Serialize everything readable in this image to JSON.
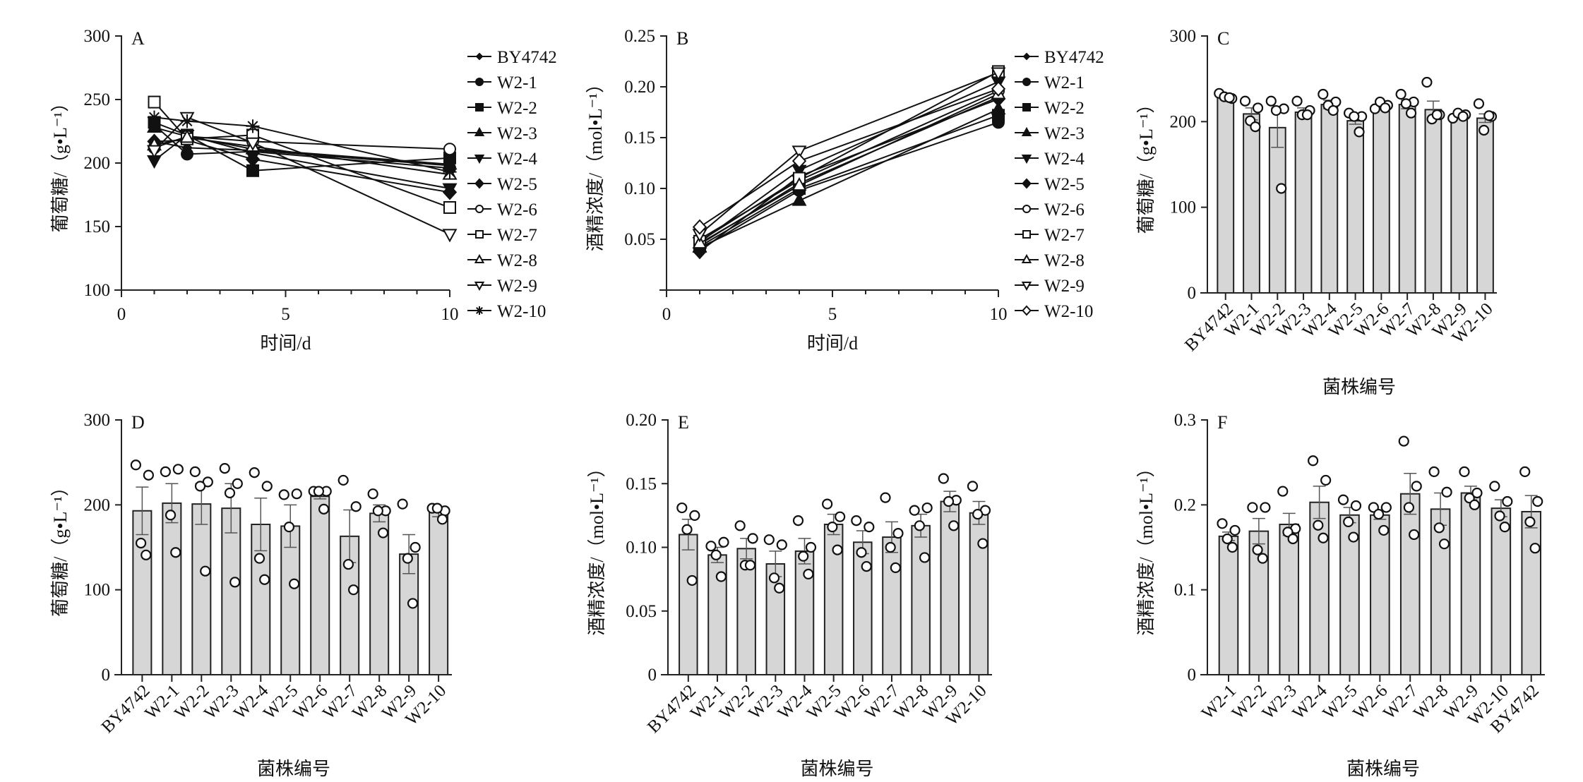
{
  "figure": {
    "panels": [
      "A",
      "B",
      "C",
      "D",
      "E",
      "F"
    ]
  },
  "chart_data": [
    {
      "panel": "A",
      "type": "line",
      "title": "",
      "xlabel": "时间/d",
      "ylabel": "葡萄糖/（g•L⁻¹）",
      "xlim": [
        0,
        10
      ],
      "ylim": [
        100,
        300
      ],
      "xticks": [
        0,
        5,
        10
      ],
      "yticks": [
        100,
        150,
        200,
        250,
        300
      ],
      "x_minor_ticks": [
        1,
        2,
        3,
        4,
        6,
        7,
        8,
        9
      ],
      "legend_position": "right",
      "x": [
        1,
        2,
        4,
        10
      ],
      "series": [
        {
          "name": "BY4742",
          "marker": "small-diamond-filled",
          "values": [
            217,
            212,
            210,
            198
          ]
        },
        {
          "name": "W2-1",
          "marker": "circle-filled",
          "values": [
            230,
            207,
            209,
            196
          ]
        },
        {
          "name": "W2-2",
          "marker": "square-filled",
          "values": [
            232,
            222,
            194,
            204
          ]
        },
        {
          "name": "W2-3",
          "marker": "triangle-up-filled",
          "values": [
            228,
            221,
            211,
            199
          ]
        },
        {
          "name": "W2-4",
          "marker": "triangle-down-filled",
          "values": [
            202,
            222,
            208,
            180
          ]
        },
        {
          "name": "W2-5",
          "marker": "diamond-filled",
          "values": [
            217,
            218,
            203,
            177
          ]
        },
        {
          "name": "W2-6",
          "marker": "circle-open",
          "values": [
            212,
            221,
            217,
            211
          ]
        },
        {
          "name": "W2-7",
          "marker": "square-open",
          "values": [
            248,
            219,
            222,
            165
          ]
        },
        {
          "name": "W2-8",
          "marker": "triangle-up-open",
          "values": [
            214,
            220,
            213,
            191
          ]
        },
        {
          "name": "W2-9",
          "marker": "triangle-down-open",
          "values": [
            210,
            236,
            216,
            144
          ]
        },
        {
          "name": "W2-10",
          "marker": "star",
          "values": [
            236,
            233,
            229,
            193
          ]
        }
      ]
    },
    {
      "panel": "B",
      "type": "line",
      "title": "",
      "xlabel": "时间/d",
      "ylabel": "酒精浓度/（mol•L⁻¹）",
      "xlim": [
        0,
        10
      ],
      "ylim": [
        0,
        0.25
      ],
      "xticks": [
        0,
        5,
        10
      ],
      "yticks": [
        0.05,
        0.1,
        0.15,
        0.2,
        0.25
      ],
      "ytick_labels": [
        "0.05",
        "0.10",
        "0.15",
        "0.20",
        "0.25"
      ],
      "x_minor_ticks": [
        1,
        2,
        3,
        4,
        6,
        7,
        8,
        9
      ],
      "legend_position": "right",
      "x": [
        1,
        4,
        10
      ],
      "series": [
        {
          "name": "BY4742",
          "marker": "small-diamond-filled",
          "values": [
            0.045,
            0.105,
            0.19
          ]
        },
        {
          "name": "W2-1",
          "marker": "circle-filled",
          "values": [
            0.04,
            0.098,
            0.165
          ]
        },
        {
          "name": "W2-2",
          "marker": "square-filled",
          "values": [
            0.043,
            0.1,
            0.172
          ]
        },
        {
          "name": "W2-3",
          "marker": "triangle-up-filled",
          "values": [
            0.042,
            0.088,
            0.178
          ]
        },
        {
          "name": "W2-4",
          "marker": "triangle-down-filled",
          "values": [
            0.047,
            0.118,
            0.205
          ]
        },
        {
          "name": "W2-5",
          "marker": "diamond-filled",
          "values": [
            0.038,
            0.112,
            0.188
          ]
        },
        {
          "name": "W2-6",
          "marker": "circle-open",
          "values": [
            0.05,
            0.108,
            0.196
          ]
        },
        {
          "name": "W2-7",
          "marker": "square-open",
          "values": [
            0.048,
            0.11,
            0.215
          ]
        },
        {
          "name": "W2-8",
          "marker": "triangle-up-open",
          "values": [
            0.046,
            0.103,
            0.193
          ]
        },
        {
          "name": "W2-9",
          "marker": "triangle-down-open",
          "values": [
            0.055,
            0.137,
            0.214
          ]
        },
        {
          "name": "W2-10",
          "marker": "diamond-open",
          "values": [
            0.062,
            0.127,
            0.198
          ]
        }
      ]
    },
    {
      "panel": "C",
      "type": "bar",
      "title": "",
      "xlabel": "菌株编号",
      "ylabel": "葡萄糖/（g•L⁻¹）",
      "ylim": [
        0,
        300
      ],
      "yticks": [
        0,
        100,
        200,
        300
      ],
      "categories": [
        "BY4742",
        "W2-1",
        "W2-2",
        "W2-3",
        "W2-4",
        "W2-5",
        "W2-6",
        "W2-7",
        "W2-8",
        "W2-9",
        "W2-10"
      ],
      "values": [
        229,
        209,
        193,
        211,
        220,
        201,
        217,
        220,
        214,
        206,
        204
      ],
      "errors": [
        2,
        7,
        23,
        5,
        5,
        4,
        2,
        5,
        10,
        2,
        5
      ],
      "points": [
        [
          233,
          227,
          229,
          228
        ],
        [
          224,
          216,
          201,
          194
        ],
        [
          224,
          215,
          213,
          122
        ],
        [
          224,
          213,
          208,
          208
        ],
        [
          232,
          223,
          219,
          213
        ],
        [
          210,
          206,
          206,
          188
        ],
        [
          215,
          219,
          223,
          216
        ],
        [
          232,
          223,
          221,
          210
        ],
        [
          246,
          208,
          203,
          208
        ],
        [
          204,
          208,
          210,
          206
        ],
        [
          221,
          206,
          190,
          207
        ]
      ]
    },
    {
      "panel": "D",
      "type": "bar",
      "title": "",
      "xlabel": "菌株编号",
      "ylabel": "葡萄糖/（g•L⁻¹）",
      "ylim": [
        0,
        300
      ],
      "yticks": [
        0,
        100,
        200,
        300
      ],
      "categories": [
        "BY4742",
        "W2-1",
        "W2-2",
        "W2-3",
        "W2-4",
        "W2-5",
        "W2-6",
        "W2-7",
        "W2-8",
        "W2-9",
        "W2-10"
      ],
      "values": [
        193,
        202,
        201,
        196,
        177,
        175,
        210,
        163,
        190,
        142,
        191
      ],
      "errors": [
        28,
        23,
        24,
        29,
        31,
        25,
        3,
        31,
        10,
        23,
        5
      ],
      "points": [
        [
          247,
          235,
          155,
          141
        ],
        [
          239,
          242,
          188,
          144
        ],
        [
          239,
          227,
          222,
          122
        ],
        [
          243,
          225,
          214,
          109
        ],
        [
          238,
          222,
          137,
          112
        ],
        [
          212,
          213,
          174,
          107
        ],
        [
          216,
          216,
          216,
          195
        ],
        [
          229,
          198,
          130,
          100
        ],
        [
          213,
          193,
          193,
          167
        ],
        [
          201,
          150,
          137,
          84
        ],
        [
          196,
          193,
          196,
          183
        ]
      ]
    },
    {
      "panel": "E",
      "type": "bar",
      "title": "",
      "xlabel": "菌株编号",
      "ylabel": "酒精浓度/（mol•L⁻¹）",
      "ylim": [
        0,
        0.2
      ],
      "yticks": [
        0,
        0.05,
        0.1,
        0.15,
        0.2
      ],
      "ytick_labels": [
        "0",
        "0.05",
        "0.10",
        "0.15",
        "0.20"
      ],
      "categories": [
        "BY4742",
        "W2-1",
        "W2-2",
        "W2-3",
        "W2-4",
        "W2-5",
        "W2-6",
        "W2-7",
        "W2-8",
        "W2-9",
        "W2-10"
      ],
      "values": [
        0.11,
        0.094,
        0.099,
        0.087,
        0.097,
        0.118,
        0.104,
        0.108,
        0.117,
        0.136,
        0.127
      ],
      "errors": [
        0.012,
        0.006,
        0.008,
        0.01,
        0.01,
        0.008,
        0.009,
        0.012,
        0.009,
        0.008,
        0.009
      ],
      "points": [
        [
          0.131,
          0.125,
          0.114,
          0.074
        ],
        [
          0.101,
          0.104,
          0.094,
          0.077
        ],
        [
          0.117,
          0.107,
          0.086,
          0.086
        ],
        [
          0.106,
          0.102,
          0.076,
          0.068
        ],
        [
          0.121,
          0.1,
          0.093,
          0.079
        ],
        [
          0.134,
          0.124,
          0.116,
          0.098
        ],
        [
          0.121,
          0.116,
          0.096,
          0.085
        ],
        [
          0.139,
          0.111,
          0.1,
          0.084
        ],
        [
          0.129,
          0.131,
          0.117,
          0.092
        ],
        [
          0.154,
          0.137,
          0.136,
          0.117
        ],
        [
          0.148,
          0.129,
          0.126,
          0.103
        ]
      ]
    },
    {
      "panel": "F",
      "type": "bar",
      "title": "",
      "xlabel": "菌株编号",
      "ylabel": "酒精浓度/（mol•L⁻¹）",
      "ylim": [
        0,
        0.3
      ],
      "yticks": [
        0,
        0.1,
        0.2,
        0.3
      ],
      "ytick_labels": [
        "0",
        "0.1",
        "0.2",
        "0.3"
      ],
      "categories": [
        "W2-1",
        "W2-2",
        "W2-3",
        "W2-4",
        "W2-5",
        "W2-6",
        "W2-7",
        "W2-8",
        "W2-9",
        "W2-10",
        "BY4742"
      ],
      "values": [
        0.163,
        0.169,
        0.177,
        0.203,
        0.188,
        0.188,
        0.213,
        0.195,
        0.214,
        0.196,
        0.192
      ],
      "errors": [
        0.005,
        0.015,
        0.013,
        0.019,
        0.009,
        0.005,
        0.024,
        0.019,
        0.008,
        0.01,
        0.019
      ],
      "points": [
        [
          0.178,
          0.17,
          0.16,
          0.15
        ],
        [
          0.197,
          0.197,
          0.147,
          0.137
        ],
        [
          0.216,
          0.172,
          0.168,
          0.16
        ],
        [
          0.252,
          0.229,
          0.176,
          0.161
        ],
        [
          0.206,
          0.199,
          0.18,
          0.162
        ],
        [
          0.197,
          0.197,
          0.189,
          0.17
        ],
        [
          0.275,
          0.222,
          0.197,
          0.165
        ],
        [
          0.239,
          0.215,
          0.173,
          0.154
        ],
        [
          0.239,
          0.214,
          0.208,
          0.2
        ],
        [
          0.222,
          0.204,
          0.187,
          0.174
        ],
        [
          0.239,
          0.204,
          0.18,
          0.149
        ]
      ]
    }
  ]
}
